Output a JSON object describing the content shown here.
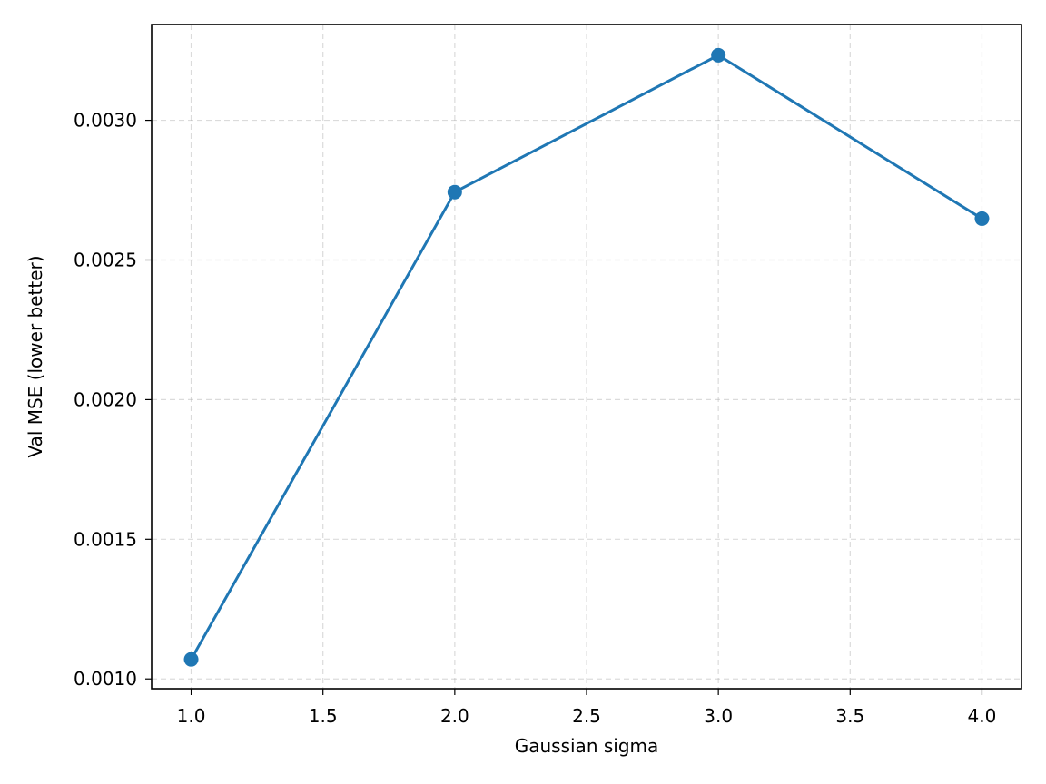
{
  "chart_data": {
    "type": "line",
    "title": "",
    "xlabel": "Gaussian sigma",
    "ylabel": "Val MSE (lower better)",
    "x": [
      1.0,
      2.0,
      3.0,
      4.0
    ],
    "series": [
      {
        "values": [
          0.00107,
          0.002743,
          0.003233,
          0.002648
        ],
        "color": "#1f77b4",
        "marker": "circle"
      }
    ],
    "xlim": [
      0.85,
      4.15
    ],
    "ylim": [
      0.000965,
      0.003343
    ],
    "xticks": [
      1.0,
      1.5,
      2.0,
      2.5,
      3.0,
      3.5,
      4.0
    ],
    "xtick_labels": [
      "1.0",
      "1.5",
      "2.0",
      "2.5",
      "3.0",
      "3.5",
      "4.0"
    ],
    "yticks": [
      0.001,
      0.0015,
      0.002,
      0.0025,
      0.003
    ],
    "ytick_labels": [
      "0.0010",
      "0.0015",
      "0.0020",
      "0.0025",
      "0.0030"
    ],
    "grid": true,
    "legend": "none"
  }
}
